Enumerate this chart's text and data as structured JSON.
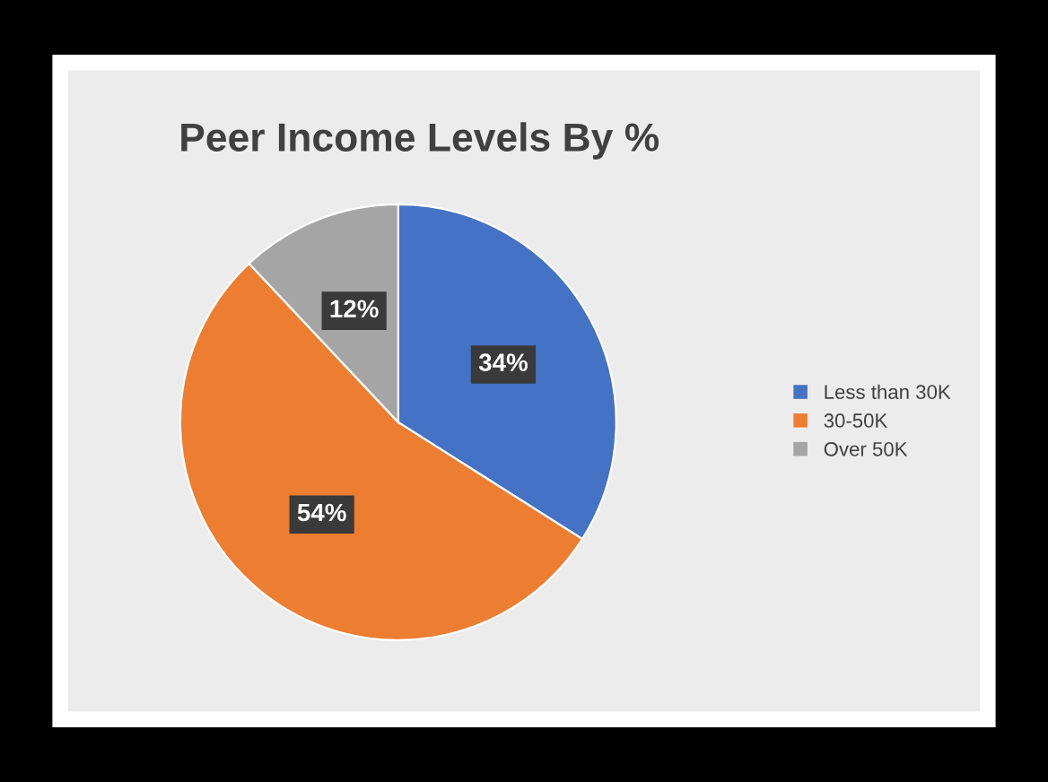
{
  "chart_data": {
    "type": "pie",
    "title": "Peer Income Levels By %",
    "categories": [
      "Less than 30K",
      "30-50K",
      "Over 50K"
    ],
    "values": [
      34,
      54,
      12
    ],
    "colors": [
      "#4472c4",
      "#ed7d31",
      "#a5a5a5"
    ],
    "value_labels": [
      "34%",
      "54%",
      "12%"
    ],
    "legend": "right"
  }
}
